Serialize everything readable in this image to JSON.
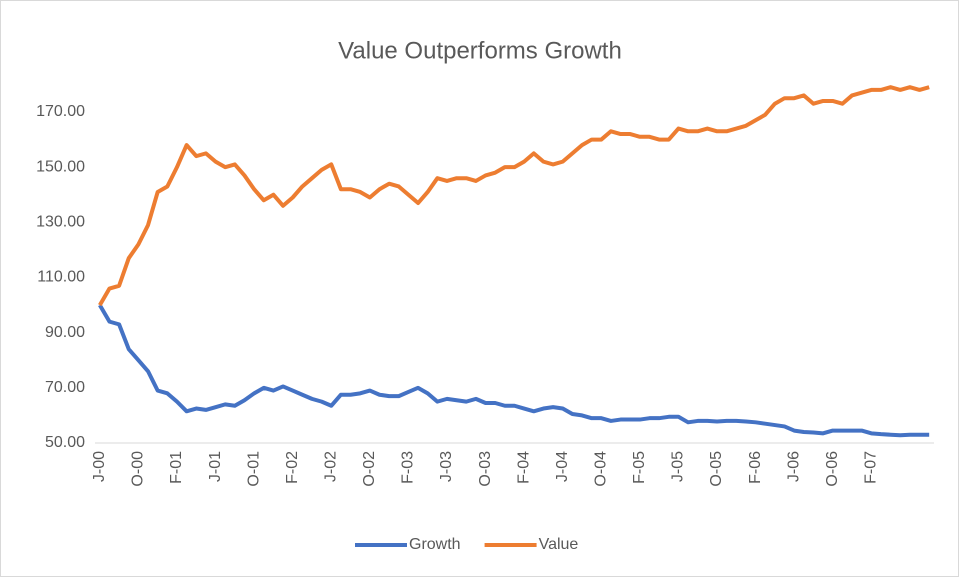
{
  "chart_data": {
    "type": "line",
    "title": "Value Outperforms Growth",
    "categories": [
      "J-00",
      null,
      null,
      null,
      "O-00",
      null,
      null,
      null,
      "F-01",
      null,
      null,
      null,
      "J-01",
      null,
      null,
      null,
      "O-01",
      null,
      null,
      null,
      "F-02",
      null,
      null,
      null,
      "J-02",
      null,
      null,
      null,
      "O-02",
      null,
      null,
      null,
      "F-03",
      null,
      null,
      null,
      "J-03",
      null,
      null,
      null,
      "O-03",
      null,
      null,
      null,
      "F-04",
      null,
      null,
      null,
      "J-04",
      null,
      null,
      null,
      "O-04",
      null,
      null,
      null,
      "F-05",
      null,
      null,
      null,
      "J-05",
      null,
      null,
      null,
      "O-05",
      null,
      null,
      null,
      "F-06",
      null,
      null,
      null,
      "J-06",
      null,
      null,
      null,
      "O-06",
      null,
      null,
      null,
      "F-07",
      null,
      null,
      null,
      null,
      null,
      null
    ],
    "series": [
      {
        "name": "Growth",
        "color": "#4472c4",
        "values": [
          100,
          94,
          93,
          84,
          80,
          76,
          69,
          68,
          65,
          61.5,
          62.5,
          62,
          63,
          64,
          63.5,
          65.5,
          68,
          70,
          69,
          70.5,
          69,
          67.5,
          66,
          65,
          63.5,
          67.5,
          67.5,
          68,
          69,
          67.5,
          67,
          67,
          68.5,
          70,
          68,
          65,
          66,
          65.5,
          65,
          66,
          64.5,
          64.5,
          63.5,
          63.5,
          62.5,
          61.5,
          62.5,
          63,
          62.5,
          60.5,
          60,
          59,
          59,
          58,
          58.5,
          58.5,
          58.5,
          59,
          59,
          59.5,
          59.5,
          57.5,
          58,
          58,
          57.8,
          58,
          58,
          57.8,
          57.5,
          57,
          56.5,
          56,
          54.5,
          54,
          53.8,
          53.5,
          54.5,
          54.5,
          54.5,
          54.5,
          53.5,
          53.2,
          53,
          52.8,
          53,
          53,
          53
        ]
      },
      {
        "name": "Value",
        "color": "#ed7d31",
        "values": [
          100,
          106,
          107,
          117,
          122,
          129,
          141,
          143,
          150,
          158,
          154,
          155,
          152,
          150,
          151,
          147,
          142,
          138,
          140,
          136,
          139,
          143,
          146,
          149,
          151,
          142,
          142,
          141,
          139,
          142,
          144,
          143,
          140,
          137,
          141,
          146,
          145,
          146,
          146,
          145,
          147,
          148,
          150,
          150,
          152,
          155,
          152,
          151,
          152,
          155,
          158,
          160,
          160,
          163,
          162,
          162,
          161,
          161,
          160,
          160,
          164,
          163,
          163,
          164,
          163,
          163,
          164,
          165,
          167,
          169,
          173,
          175,
          175,
          176,
          173,
          174,
          174,
          173,
          176,
          177,
          178,
          178,
          179,
          178,
          179,
          178,
          179
        ]
      }
    ],
    "ylim": [
      50,
      180
    ],
    "yticks": [
      {
        "value": 50,
        "label": "50.00"
      },
      {
        "value": 70,
        "label": "70.00"
      },
      {
        "value": 90,
        "label": "90.00"
      },
      {
        "value": 110,
        "label": "110.00"
      },
      {
        "value": 130,
        "label": "130.00"
      },
      {
        "value": 150,
        "label": "150.00"
      },
      {
        "value": 170,
        "label": "170.00"
      }
    ],
    "grid": false,
    "legend": "bottom"
  }
}
